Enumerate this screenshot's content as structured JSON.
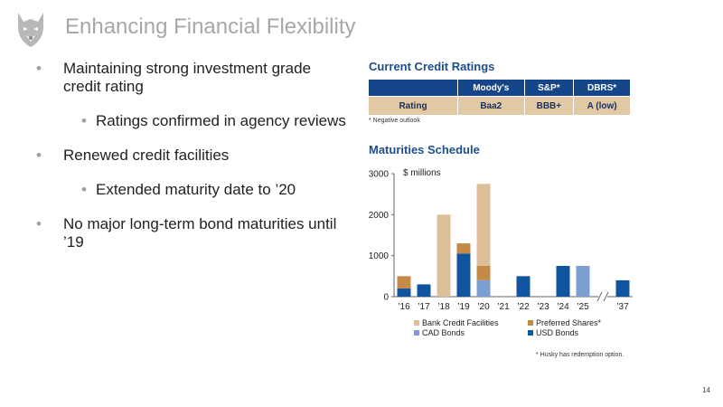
{
  "slide": {
    "title": "Enhancing Financial Flexibility",
    "page_number": "14"
  },
  "bullets": [
    {
      "level": 1,
      "text": "Maintaining strong investment grade credit rating"
    },
    {
      "level": 2,
      "text": "Ratings confirmed in agency reviews"
    },
    {
      "level": 1,
      "text": "Renewed credit facilities"
    },
    {
      "level": 2,
      "text": "Extended maturity date to ’20"
    },
    {
      "level": 1,
      "text": "No major long-term bond maturities until ’19"
    }
  ],
  "credit_ratings": {
    "heading": "Current Credit Ratings",
    "columns": [
      "",
      "Moody's",
      "S&P*",
      "DBRS*"
    ],
    "row": [
      "Rating",
      "Baa2",
      "BBB+",
      "A (low)"
    ],
    "footnote": "* Negative outlook"
  },
  "maturities": {
    "heading": "Maturities Schedule",
    "footnote": "* Husky has redemption option."
  },
  "chart_data": {
    "type": "bar",
    "stacked": true,
    "unit_label": "$ millions",
    "categories": [
      "’16",
      "’17",
      "’18",
      "’19",
      "’20",
      "’21",
      "’22",
      "’23",
      "’24",
      "’25",
      "’37"
    ],
    "axis_break_between": [
      "’25",
      "’37"
    ],
    "ylim": [
      0,
      3000
    ],
    "yticks": [
      "0",
      "1000",
      "2000",
      "3000"
    ],
    "legend_position": "bottom",
    "series": [
      {
        "name": "USD Bonds",
        "color": "#1054a0",
        "values": [
          200,
          300,
          0,
          1050,
          0,
          0,
          500,
          0,
          750,
          0,
          400
        ]
      },
      {
        "name": "CAD Bonds",
        "color": "#7a9fd0",
        "values": [
          0,
          0,
          0,
          0,
          400,
          0,
          0,
          0,
          0,
          750,
          0
        ]
      },
      {
        "name": "Preferred Shares*",
        "color": "#c48a46",
        "values": [
          300,
          0,
          0,
          250,
          350,
          0,
          0,
          0,
          0,
          0,
          0
        ]
      },
      {
        "name": "Bank Credit Facilities",
        "color": "#dcbf98",
        "values": [
          0,
          0,
          2000,
          0,
          2000,
          0,
          0,
          0,
          0,
          0,
          0
        ]
      }
    ],
    "legend_order": [
      "Bank Credit Facilities",
      "Preferred Shares*",
      "CAD Bonds",
      "USD Bonds"
    ]
  },
  "colors": {
    "title": "#a7a7a7",
    "accent": "#1f4e8c",
    "table_header": "#15468a",
    "table_row": "#e3c8a5"
  }
}
